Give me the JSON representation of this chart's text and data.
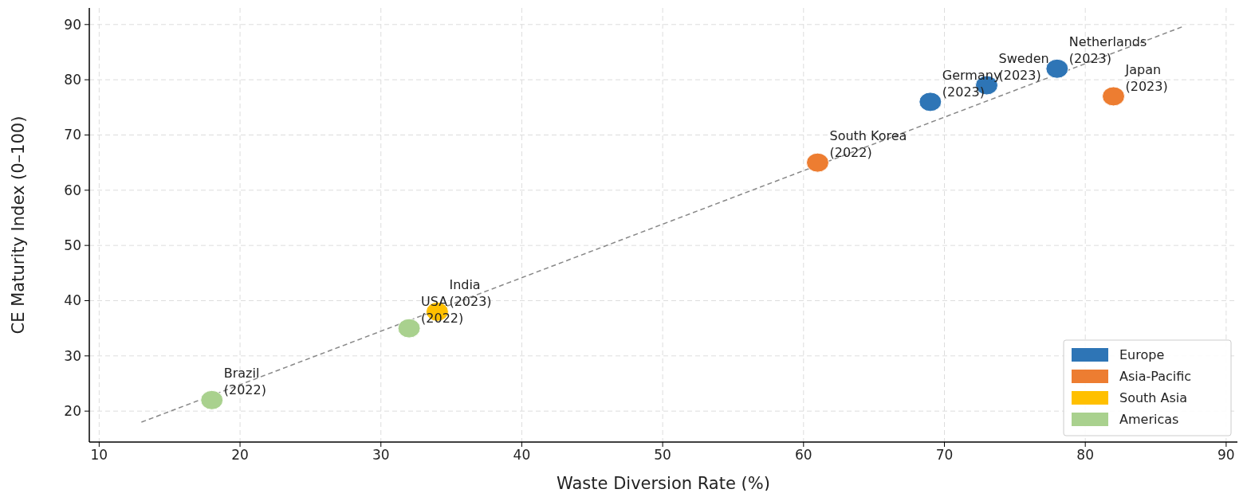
{
  "chart_data": {
    "type": "scatter",
    "xlabel": "Waste Diversion Rate (%)",
    "ylabel": "CE Maturity Index (0–100)",
    "xlim": [
      9.3,
      90.8
    ],
    "ylim": [
      14.4,
      93
    ],
    "xticks": [
      10,
      20,
      30,
      40,
      50,
      60,
      70,
      80,
      90
    ],
    "yticks": [
      20,
      30,
      40,
      50,
      60,
      70,
      80,
      90
    ],
    "grid": true,
    "legend": "bottom right",
    "marker": "circle",
    "series": [
      {
        "name": "Europe",
        "color": "#2e75b6",
        "x": [
          69,
          73,
          78
        ],
        "values": [
          76,
          79,
          82
        ]
      },
      {
        "name": "Asia-Pacific",
        "color": "#ed7d31",
        "x": [
          61,
          82
        ],
        "values": [
          65,
          77
        ]
      },
      {
        "name": "South Asia",
        "color": "#ffc000",
        "x": [
          34
        ],
        "values": [
          38
        ]
      },
      {
        "name": "Americas",
        "color": "#a9d18e",
        "x": [
          18,
          32
        ],
        "values": [
          22,
          35
        ]
      },
      {
        "type": "line",
        "color": "#888888",
        "line_style": "dashed",
        "marker": "none",
        "x": [
          13,
          87
        ],
        "values": [
          18,
          89.7
        ]
      }
    ],
    "annotations": [
      {
        "text": "Brazil\n(2022)",
        "x": 18,
        "y": 22
      },
      {
        "text": "USA\n(2022)",
        "x": 32,
        "y": 35
      },
      {
        "text": "India\n(2023)",
        "x": 34,
        "y": 38
      },
      {
        "text": "South Korea\n(2022)",
        "x": 61,
        "y": 65
      },
      {
        "text": "Germany\n(2023)",
        "x": 69,
        "y": 76
      },
      {
        "text": "Sweden\n(2023)",
        "x": 73,
        "y": 79
      },
      {
        "text": "Netherlands\n(2023)",
        "x": 78,
        "y": 82
      },
      {
        "text": "Japan\n(2023)",
        "x": 82,
        "y": 77
      }
    ]
  }
}
